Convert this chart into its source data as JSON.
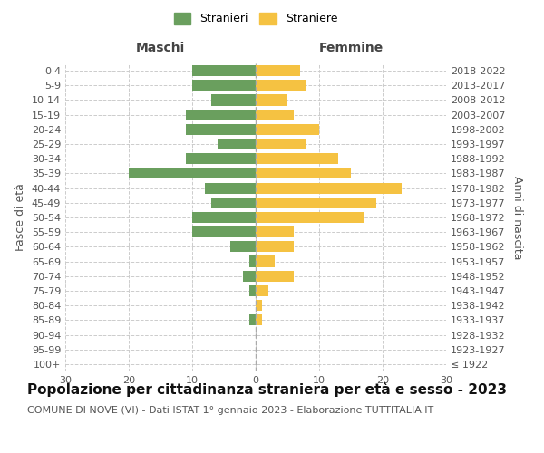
{
  "age_groups": [
    "100+",
    "95-99",
    "90-94",
    "85-89",
    "80-84",
    "75-79",
    "70-74",
    "65-69",
    "60-64",
    "55-59",
    "50-54",
    "45-49",
    "40-44",
    "35-39",
    "30-34",
    "25-29",
    "20-24",
    "15-19",
    "10-14",
    "5-9",
    "0-4"
  ],
  "birth_years": [
    "≤ 1922",
    "1923-1927",
    "1928-1932",
    "1933-1937",
    "1938-1942",
    "1943-1947",
    "1948-1952",
    "1953-1957",
    "1958-1962",
    "1963-1967",
    "1968-1972",
    "1973-1977",
    "1978-1982",
    "1983-1987",
    "1988-1992",
    "1993-1997",
    "1998-2002",
    "2003-2007",
    "2008-2012",
    "2013-2017",
    "2018-2022"
  ],
  "males": [
    0,
    0,
    0,
    1,
    0,
    1,
    2,
    1,
    4,
    10,
    10,
    7,
    8,
    20,
    11,
    6,
    11,
    11,
    7,
    10,
    10
  ],
  "females": [
    0,
    0,
    0,
    1,
    1,
    2,
    6,
    3,
    6,
    6,
    17,
    19,
    23,
    15,
    13,
    8,
    10,
    6,
    5,
    8,
    7
  ],
  "male_color": "#6a9f5e",
  "female_color": "#f5c242",
  "bar_height": 0.75,
  "xlim": 30,
  "title": "Popolazione per cittadinanza straniera per età e sesso - 2023",
  "subtitle": "COMUNE DI NOVE (VI) - Dati ISTAT 1° gennaio 2023 - Elaborazione TUTTITALIA.IT",
  "ylabel_left": "Fasce di età",
  "ylabel_right": "Anni di nascita",
  "xlabel_left": "Maschi",
  "xlabel_right": "Femmine",
  "legend_males": "Stranieri",
  "legend_females": "Straniere",
  "background_color": "#ffffff",
  "grid_color": "#cccccc",
  "title_fontsize": 11,
  "subtitle_fontsize": 8,
  "axis_label_fontsize": 9,
  "tick_fontsize": 8
}
